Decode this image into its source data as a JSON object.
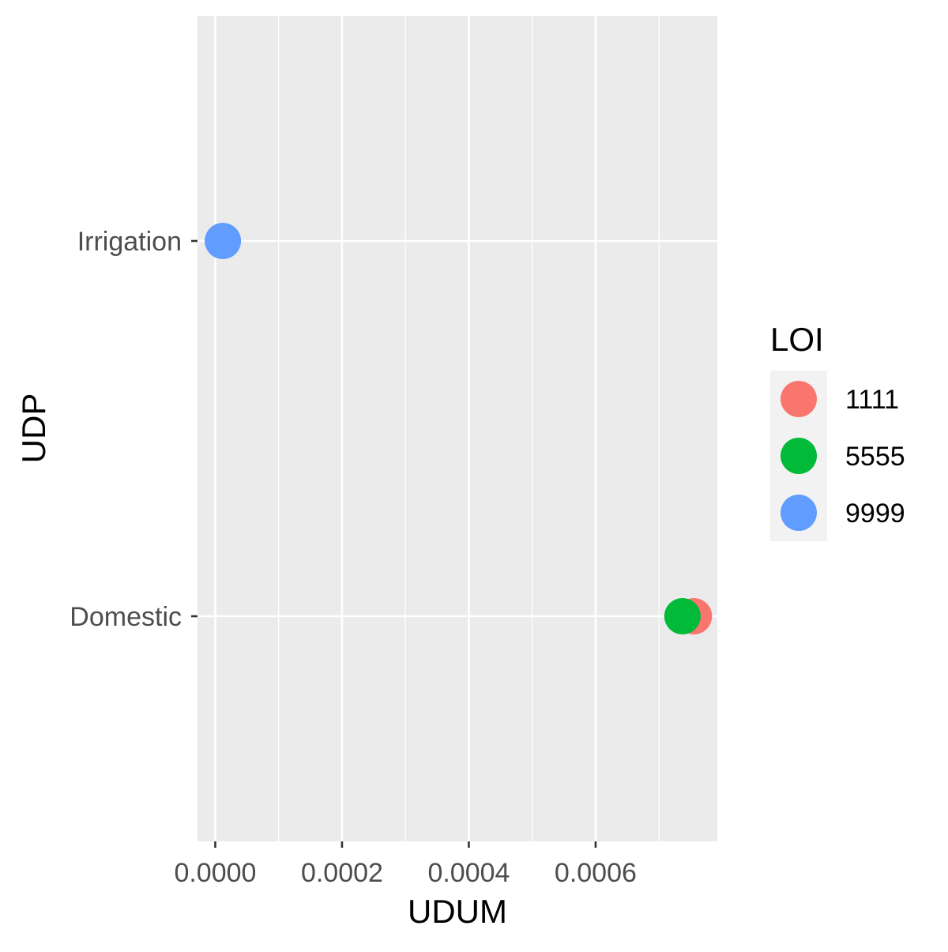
{
  "chart_data": {
    "type": "scatter",
    "title": "",
    "xlabel": "UDUM",
    "ylabel": "UDP",
    "xlim": [
      -2.8e-05,
      0.000792
    ],
    "x_ticks": [
      0,
      0.0002,
      0.0004,
      0.0006
    ],
    "x_tick_labels": [
      "0.0000",
      "0.0002",
      "0.0004",
      "0.0006"
    ],
    "categories": [
      "Domestic",
      "Irrigation"
    ],
    "grid": true,
    "legend": {
      "title": "LOI",
      "position": "right",
      "entries": [
        {
          "label": "1111",
          "color": "#F8766D"
        },
        {
          "label": "5555",
          "color": "#00BA38"
        },
        {
          "label": "9999",
          "color": "#619CFF"
        }
      ]
    },
    "series": [
      {
        "name": "1111",
        "color": "#F8766D",
        "points": [
          {
            "x": 0.000755,
            "y": "Domestic"
          }
        ]
      },
      {
        "name": "5555",
        "color": "#00BA38",
        "points": [
          {
            "x": 0.000737,
            "y": "Domestic"
          }
        ]
      },
      {
        "name": "9999",
        "color": "#619CFF",
        "points": [
          {
            "x": 1.2e-05,
            "y": "Irrigation"
          }
        ]
      }
    ]
  }
}
